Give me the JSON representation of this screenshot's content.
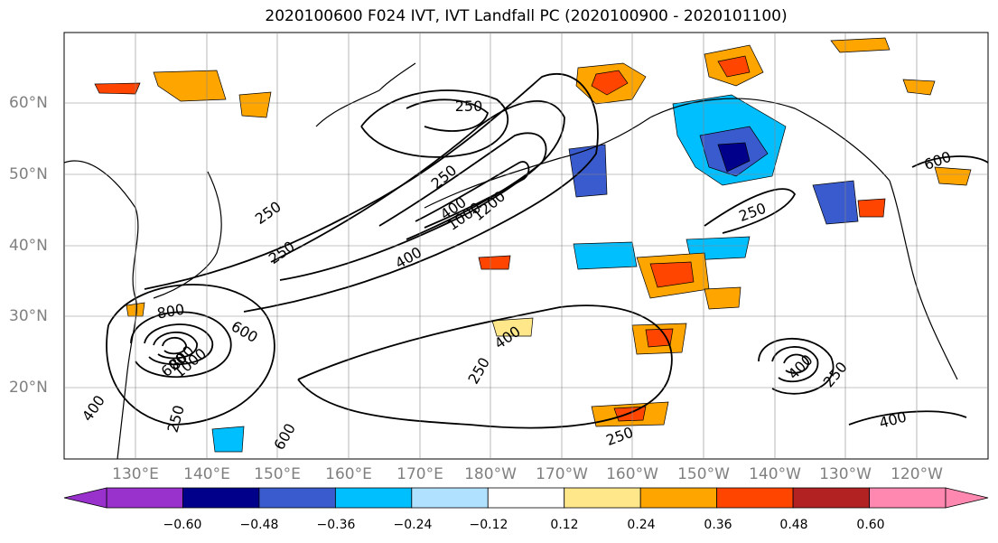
{
  "title": "2020100600 F024 IVT, IVT Landfall PC (2020100900 - 2020101100)",
  "lat_labels": [
    "60°N",
    "50°N",
    "40°N",
    "30°N",
    "20°N"
  ],
  "lon_labels": [
    "130°E",
    "140°E",
    "150°E",
    "160°E",
    "170°E",
    "180°W",
    "170°W",
    "160°W",
    "150°W",
    "140°W",
    "130°W",
    "120°W"
  ],
  "colorbar": {
    "ticks": [
      "−0.60",
      "−0.48",
      "−0.36",
      "−0.24",
      "−0.12",
      "0.12",
      "0.24",
      "0.36",
      "0.48",
      "0.60"
    ],
    "colors": [
      "#9932cc",
      "#00008b",
      "#3a5bcd",
      "#00bfff",
      "#b0e2ff",
      "#ffffff",
      "#ffe78a",
      "#ffa500",
      "#ff4500",
      "#b22222",
      "#ff88b0"
    ],
    "extend": "both"
  },
  "contour_labels": [
    {
      "text": "250"
    },
    {
      "text": "800"
    },
    {
      "text": "600"
    },
    {
      "text": "400"
    },
    {
      "text": "1200"
    },
    {
      "text": "1000"
    },
    {
      "text": "250"
    },
    {
      "text": "400"
    },
    {
      "text": "250"
    },
    {
      "text": "800"
    },
    {
      "text": "600"
    },
    {
      "text": "1000"
    },
    {
      "text": "400"
    },
    {
      "text": "250"
    },
    {
      "text": "400"
    },
    {
      "text": "250"
    },
    {
      "text": "600"
    },
    {
      "text": "400"
    },
    {
      "text": "250"
    },
    {
      "text": "250"
    },
    {
      "text": "600"
    },
    {
      "text": "400"
    },
    {
      "text": "250"
    },
    {
      "text": "250"
    }
  ]
}
